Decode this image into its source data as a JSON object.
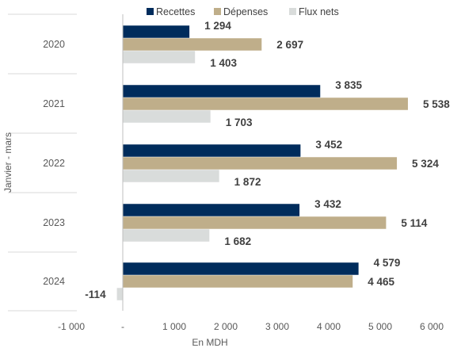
{
  "chart_data": {
    "type": "bar",
    "orientation": "horizontal",
    "categories": [
      "2020",
      "2021",
      "2022",
      "2023",
      "2024"
    ],
    "series": [
      {
        "name": "Recettes",
        "color": "#002c5c",
        "values": [
          1294,
          3835,
          3452,
          3432,
          4579
        ]
      },
      {
        "name": "Dépenses",
        "color": "#bfae8a",
        "values": [
          2697,
          5538,
          5324,
          5114,
          4465
        ]
      },
      {
        "name": "Flux nets",
        "color": "#d9dcdb",
        "values": [
          1403,
          1703,
          1872,
          1682,
          -114
        ]
      }
    ],
    "data_labels": [
      [
        "1 294",
        "3 835",
        "3 452",
        "3 432",
        "4 579"
      ],
      [
        "2 697",
        "5 538",
        "5 324",
        "5 114",
        "4 465"
      ],
      [
        "1 403",
        "1 703",
        "1 872",
        "1 682",
        "-114"
      ]
    ],
    "xlabel": "En MDH",
    "ylabel": "Janvier - mars",
    "xlim": [
      -1000,
      6000
    ],
    "x_ticks": [
      -1000,
      0,
      1000,
      2000,
      3000,
      4000,
      5000,
      6000
    ],
    "x_tick_labels": [
      "-1 000",
      "-",
      "1 000",
      "2 000",
      "3 000",
      "4 000",
      "5 000",
      "6 000"
    ],
    "legend_position": "top",
    "grid": false
  }
}
